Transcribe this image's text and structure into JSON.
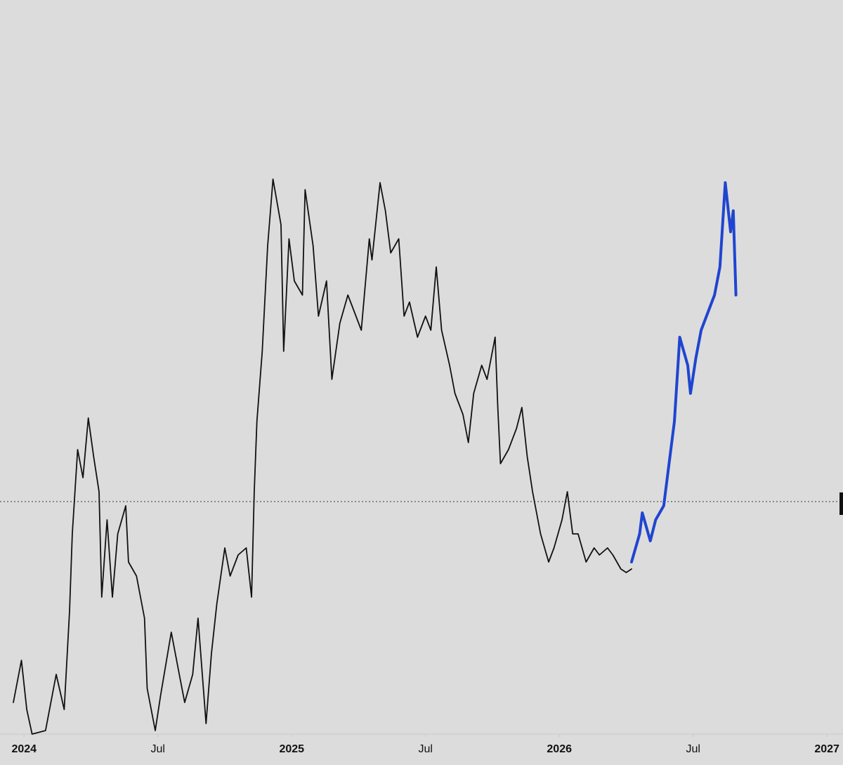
{
  "chart_data": {
    "type": "line",
    "xlim": [
      2023.91,
      2027.06
    ],
    "ylim": [
      0,
      104.5
    ],
    "xticks": [
      2024,
      {
        "value": 2024.5,
        "label": "Jul"
      },
      2025,
      {
        "value": 2025.5,
        "label": "Jul"
      },
      2026,
      {
        "value": 2026.5,
        "label": "Jul"
      },
      2027
    ],
    "price_line": 33.1,
    "series": [
      {
        "color": "#111111",
        "x": [
          2023.96,
          2023.99,
          2024.01,
          2024.03,
          2024.08,
          2024.12,
          2024.15,
          2024.17,
          2024.18,
          2024.2,
          2024.22,
          2024.24,
          2024.26,
          2024.28,
          2024.29,
          2024.31,
          2024.33,
          2024.35,
          2024.38,
          2024.39,
          2024.42,
          2024.45,
          2024.46,
          2024.49,
          2024.51,
          2024.55,
          2024.58,
          2024.6,
          2024.63,
          2024.65,
          2024.68,
          2024.7,
          2024.72,
          2024.75,
          2024.77,
          2024.8,
          2024.83,
          2024.85,
          2024.86,
          2024.87,
          2024.89,
          2024.91,
          2024.93,
          2024.96,
          2024.97,
          2024.99,
          2025.01,
          2025.04,
          2025.05,
          2025.08,
          2025.1,
          2025.13,
          2025.15,
          2025.18,
          2025.21,
          2025.23,
          2025.26,
          2025.29,
          2025.3,
          2025.33,
          2025.35,
          2025.37,
          2025.4,
          2025.42,
          2025.44,
          2025.47,
          2025.5,
          2025.52,
          2025.54,
          2025.56,
          2025.59,
          2025.61,
          2025.64,
          2025.66,
          2025.68,
          2025.71,
          2025.73,
          2025.76,
          2025.77,
          2025.78,
          2025.81,
          2025.84,
          2025.86,
          2025.88,
          2025.9,
          2025.93,
          2025.96,
          2025.98,
          2026.01,
          2026.03,
          2026.05,
          2026.07,
          2026.1,
          2026.13,
          2026.15,
          2026.18,
          2026.2,
          2026.23,
          2026.25,
          2026.27
        ],
        "values": [
          4.5,
          10.5,
          3.5,
          0,
          0.5,
          8.5,
          3.5,
          17.5,
          28.5,
          40.5,
          36.5,
          45,
          39.5,
          34.5,
          19.5,
          30.5,
          19.5,
          28.5,
          32.5,
          24.5,
          22.5,
          16.5,
          6.5,
          0.5,
          5.5,
          14.5,
          8.5,
          4.5,
          8.5,
          16.5,
          1.5,
          11.5,
          18.5,
          26.5,
          22.5,
          25.5,
          26.5,
          19.5,
          34.5,
          44.5,
          54.5,
          69.5,
          79,
          72.5,
          54.5,
          70.5,
          64.5,
          62.5,
          77.5,
          69.5,
          59.5,
          64.5,
          50.5,
          58.5,
          62.5,
          60.5,
          57.5,
          70.5,
          67.5,
          78.5,
          74.5,
          68.5,
          70.5,
          59.5,
          61.5,
          56.5,
          59.5,
          57.5,
          66.5,
          57.5,
          52.5,
          48.5,
          45.5,
          41.5,
          48.5,
          52.5,
          50.5,
          56.5,
          46.5,
          38.5,
          40.5,
          43.5,
          46.5,
          39.5,
          34.5,
          28.5,
          24.5,
          26.5,
          30.5,
          34.5,
          28.5,
          28.5,
          24.5,
          26.5,
          25.5,
          26.5,
          25.5,
          23.5,
          23,
          23.5
        ]
      },
      {
        "color": "#1f45d0",
        "x": [
          2026.27,
          2026.3,
          2026.31,
          2026.34,
          2026.36,
          2026.39,
          2026.41,
          2026.43,
          2026.45,
          2026.48,
          2026.49,
          2026.51,
          2026.53,
          2026.56,
          2026.58,
          2026.6,
          2026.61,
          2026.62,
          2026.64,
          2026.65,
          2026.66
        ],
        "values": [
          24.5,
          28.5,
          31.5,
          27.5,
          30.5,
          32.5,
          38.5,
          44.5,
          56.5,
          52.5,
          48.5,
          53.5,
          57.5,
          60.5,
          62.5,
          66.5,
          72.5,
          78.5,
          71.5,
          74.5,
          62.5
        ]
      }
    ]
  }
}
